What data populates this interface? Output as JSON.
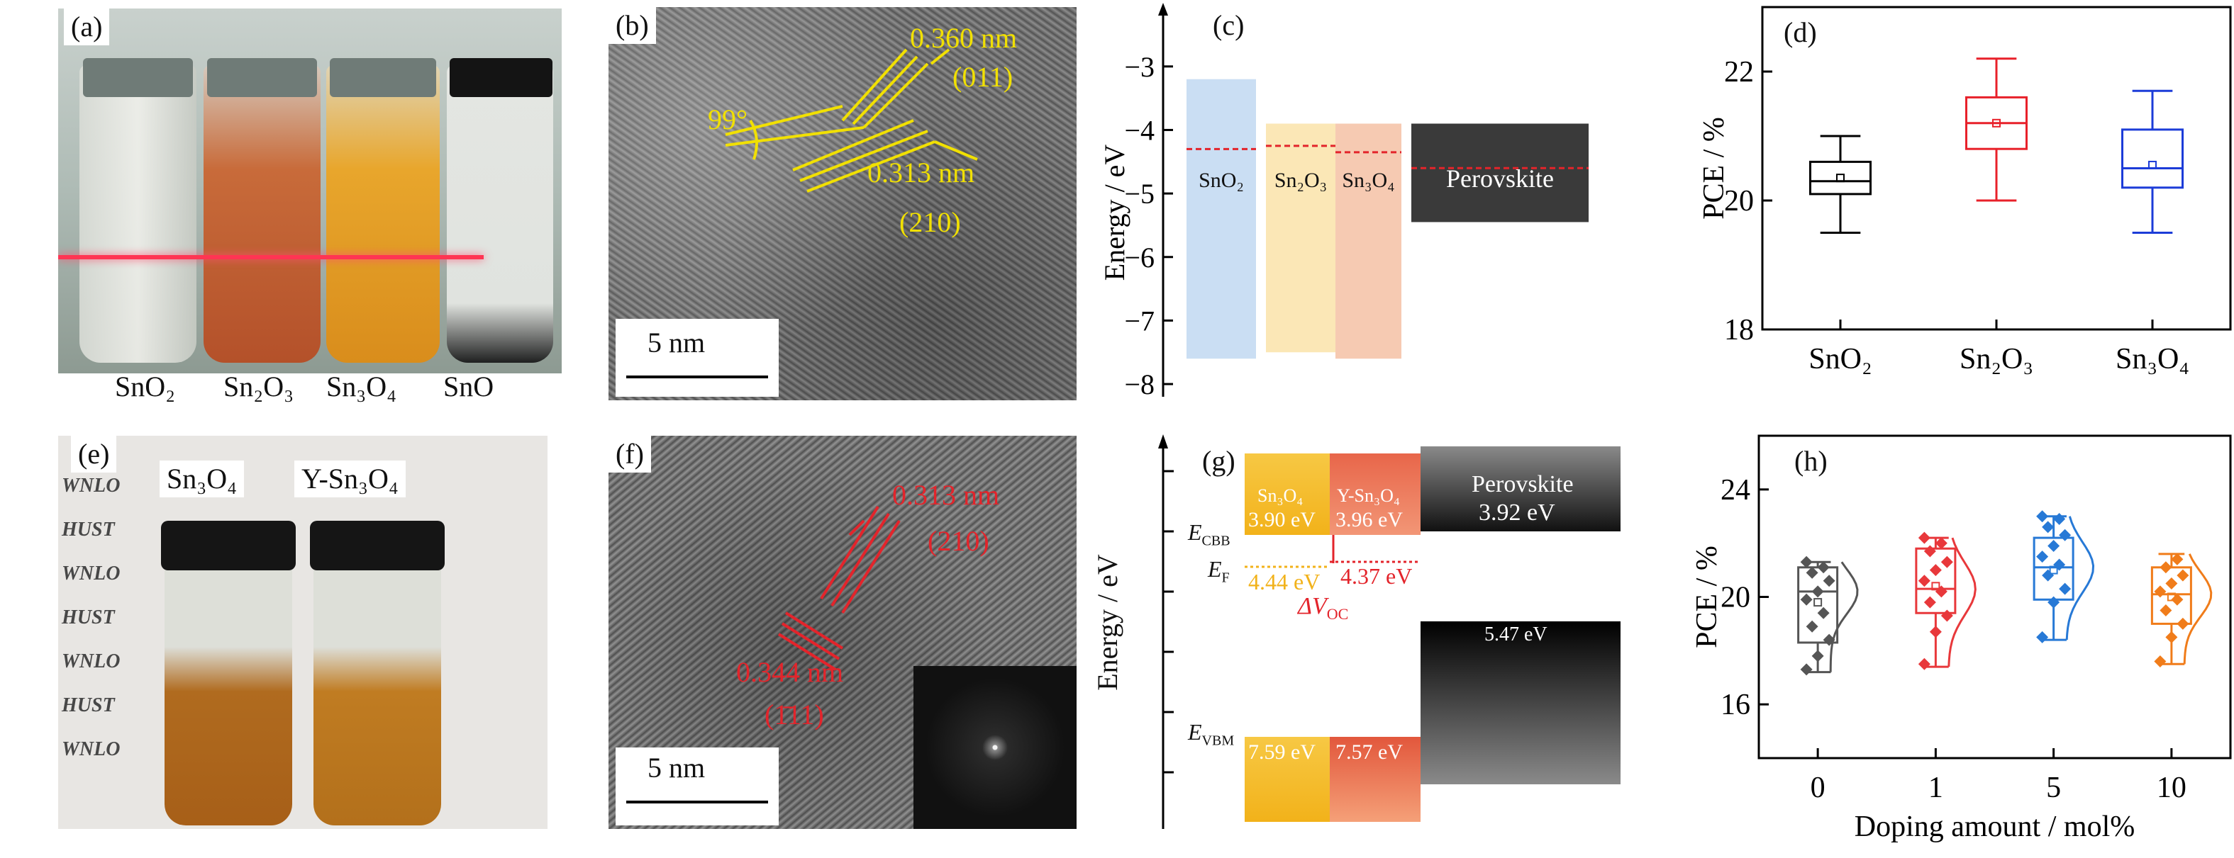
{
  "panels": {
    "a": {
      "label": "(a)",
      "captions": [
        "SnO₂",
        "Sn₂O₃",
        "Sn₃O₄",
        "SnO"
      ]
    },
    "b": {
      "label": "(b)",
      "d1": "0.360 nm",
      "p1": "(011)",
      "angle": "99°",
      "d2": "0.313 nm",
      "p2": "(210)",
      "scale": "5 nm"
    },
    "c": {
      "label": "(c)",
      "ylabel": "Energy / eV",
      "bands": [
        "SnO₂",
        "Sn₂O₃",
        "Sn₃O₄",
        "Perovskite"
      ]
    },
    "d": {
      "label": "(d)",
      "ylabel": "PCE / %"
    },
    "e": {
      "label": "(e)",
      "tag1": "Sn₃O₄",
      "tag2": "Y-Sn₃O₄",
      "bg_words": [
        "WNLO",
        "HUST",
        "WNLO",
        "HUST",
        "WNLO",
        "HUST",
        "WNLO"
      ]
    },
    "f": {
      "label": "(f)",
      "d1": "0.313 nm",
      "p1": "(210)",
      "d2": "0.344 nm",
      "p2": "(1̄11)",
      "scale": "5 nm"
    },
    "g": {
      "label": "(g)",
      "ylabel": "Energy / eV",
      "sn3o4": "Sn₃O₄",
      "ysn3o4": "Y-Sn₃O₄",
      "perov": "Perovskite",
      "cbb": "E",
      "cbb_sub": "CBB",
      "vbm": "E",
      "vbm_sub": "VBM",
      "ef": "E",
      "ef_sub": "F",
      "v_cb1": "3.90 eV",
      "v_cb2": "3.96 eV",
      "v_cb3": "3.92 eV",
      "v_ef1": "4.44 eV",
      "v_ef2": "4.37 eV",
      "v_vb3": "5.47 eV",
      "v_vb1": "7.59 eV",
      "v_vb2": "7.57 eV",
      "dvoc": "ΔV",
      "dvoc_sub": "OC"
    },
    "h": {
      "label": "(h)",
      "ylabel": "PCE / %",
      "xlabel": "Doping amount / mol%"
    }
  },
  "chart_data": [
    {
      "type": "bar",
      "panel": "c",
      "ylabel": "Energy / eV",
      "ylim": [
        -8.2,
        -2.4
      ],
      "yticks": [
        -3,
        -4,
        -5,
        -6,
        -7,
        -8
      ],
      "categories": [
        "SnO₂",
        "Sn₂O₃",
        "Sn₃O₄",
        "Perovskite"
      ],
      "cb": [
        -3.2,
        -3.9,
        -3.9,
        -3.9
      ],
      "vb": [
        -7.6,
        -7.5,
        -7.6,
        -5.45
      ],
      "fermi": [
        -4.3,
        -4.25,
        -4.35,
        -4.6
      ],
      "colors": [
        "#9ec3ea",
        "#f8d37a",
        "#ef9e72",
        "#3a3a3a"
      ]
    },
    {
      "type": "box",
      "panel": "d",
      "ylabel": "PCE / %",
      "ylim": [
        18,
        23
      ],
      "yticks": [
        18,
        20,
        22
      ],
      "categories": [
        "SnO₂",
        "Sn₂O₃",
        "Sn₃O₄"
      ],
      "boxes": [
        {
          "min": 19.5,
          "q1": 20.1,
          "median": 20.3,
          "q3": 20.6,
          "max": 21.0,
          "mean": 20.35
        },
        {
          "min": 20.0,
          "q1": 20.8,
          "median": 21.2,
          "q3": 21.6,
          "max": 22.2,
          "mean": 21.2
        },
        {
          "min": 19.5,
          "q1": 20.2,
          "median": 20.5,
          "q3": 21.1,
          "max": 21.7,
          "mean": 20.55
        }
      ],
      "colors": [
        "#000000",
        "#e8212a",
        "#1c3cd8"
      ]
    },
    {
      "type": "box",
      "panel": "h",
      "ylabel": "PCE / %",
      "xlabel": "Doping amount / mol%",
      "ylim": [
        14,
        26
      ],
      "yticks": [
        16,
        20,
        24
      ],
      "categories": [
        "0",
        "1",
        "5",
        "10"
      ],
      "boxes": [
        {
          "min": 17.2,
          "q1": 18.3,
          "median": 20.2,
          "q3": 21.1,
          "max": 21.3,
          "mean": 19.8
        },
        {
          "min": 17.4,
          "q1": 19.4,
          "median": 20.3,
          "q3": 21.8,
          "max": 22.2,
          "mean": 20.4
        },
        {
          "min": 18.4,
          "q1": 19.9,
          "median": 21.1,
          "q3": 22.2,
          "max": 23.0,
          "mean": 21.0
        },
        {
          "min": 17.5,
          "q1": 19.0,
          "median": 20.1,
          "q3": 21.1,
          "max": 21.6,
          "mean": 20.0
        }
      ],
      "points": [
        [
          17.3,
          17.8,
          18.4,
          18.9,
          19.4,
          19.9,
          20.2,
          20.6,
          20.9,
          21.1,
          21.3
        ],
        [
          17.5,
          18.7,
          19.3,
          19.8,
          20.2,
          20.6,
          21.0,
          21.3,
          21.7,
          22.0,
          22.2
        ],
        [
          18.5,
          19.8,
          20.3,
          20.8,
          21.2,
          21.5,
          21.9,
          22.3,
          22.6,
          22.9,
          23.0
        ],
        [
          17.6,
          18.5,
          19.0,
          19.5,
          19.9,
          20.2,
          20.5,
          20.8,
          21.1,
          21.4
        ]
      ],
      "colors": [
        "#555555",
        "#e8383b",
        "#2779d6",
        "#f07c1a"
      ]
    }
  ]
}
